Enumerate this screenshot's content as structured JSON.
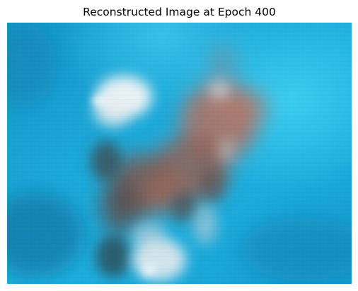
{
  "title": "Reconstructed Image at Epoch 400",
  "palette": {
    "background_blue": "#1aa3d6",
    "light_cyan": "#35c6ec",
    "deep_blue": "#0e6f9e",
    "white_blob": "#e8eef2",
    "rust_brown": "#a46a5c",
    "dark_brown": "#3e4448",
    "grey_light": "#c9cfd3"
  }
}
